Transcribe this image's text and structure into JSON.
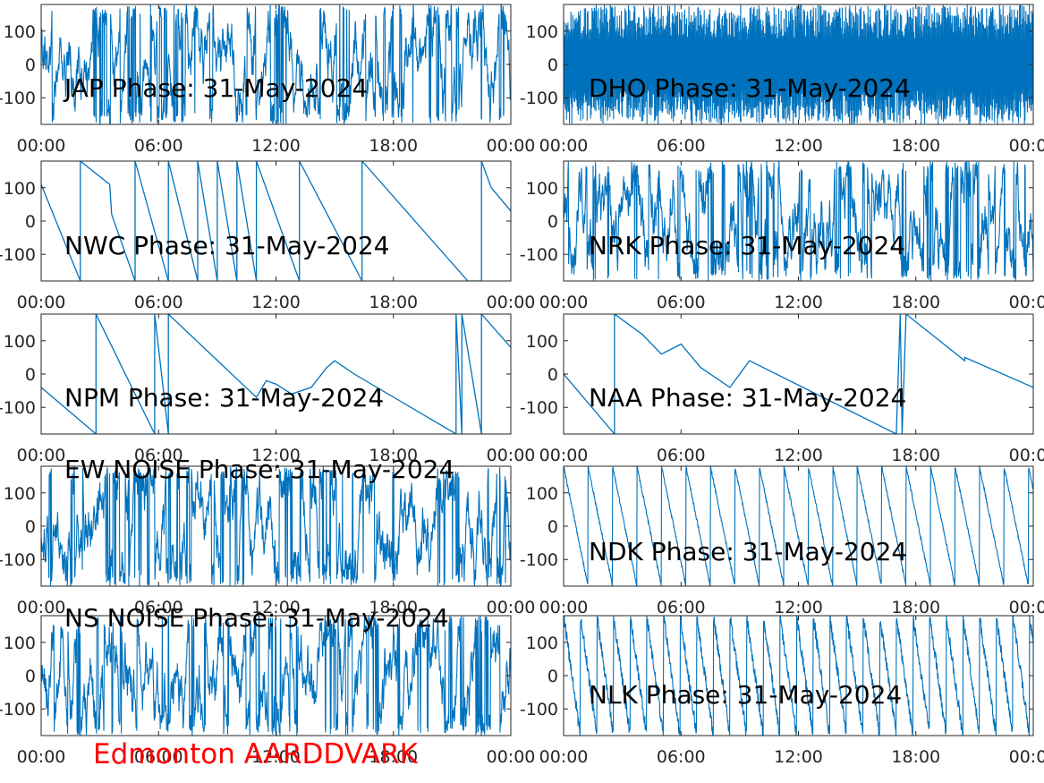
{
  "colors": {
    "trace": "#0072bd",
    "axis": "#262626",
    "footer": "#ff0000",
    "background": "#ffffff"
  },
  "footer": {
    "label": "Edmonton AARDDVARK"
  },
  "chart_data": [
    {
      "type": "line",
      "title": "JAP Phase: 31-May-2024",
      "trace": "noise",
      "seed": 11,
      "x_tick_labels": [
        "00:00",
        "06:00",
        "12:00",
        "18:00",
        "00:00"
      ],
      "y_tick_labels": [
        "100",
        "0",
        "-100"
      ],
      "xlim": [
        0,
        24
      ],
      "ylim": [
        -180,
        180
      ],
      "series": [
        {
          "x": [],
          "y": []
        }
      ]
    },
    {
      "type": "line",
      "title": "DHO Phase: 31-May-2024",
      "trace": "dense",
      "seed": 12,
      "x_tick_labels": [
        "00:00",
        "06:00",
        "12:00",
        "18:00",
        "00:00"
      ],
      "y_tick_labels": [
        "100",
        "0",
        "-100"
      ],
      "xlim": [
        0,
        24
      ],
      "ylim": [
        -180,
        180
      ],
      "series": [
        {
          "x": [],
          "y": []
        }
      ]
    },
    {
      "type": "line",
      "title": "NWC Phase: 31-May-2024",
      "trace": "sawtooth",
      "seed": 13,
      "x_tick_labels": [
        "00:00",
        "06:00",
        "12:00",
        "18:00",
        "00:00"
      ],
      "y_tick_labels": [
        "100",
        "0",
        "-100"
      ],
      "xlim": [
        0,
        24
      ],
      "ylim": [
        -180,
        180
      ],
      "series": [
        {
          "x": [
            0,
            2,
            2,
            3.5,
            3.6,
            4.8,
            4.8,
            6.5,
            6.5,
            8,
            8,
            9,
            9,
            10,
            10,
            11,
            11,
            13.2,
            13.2,
            16.4,
            16.4,
            21.2,
            21.8,
            22.5,
            22.5,
            23,
            24
          ],
          "y": [
            110,
            -180,
            180,
            110,
            20,
            -180,
            180,
            -180,
            180,
            -180,
            180,
            -180,
            180,
            -180,
            180,
            -180,
            180,
            -180,
            180,
            -180,
            180,
            -140,
            -180,
            -180,
            180,
            100,
            30
          ]
        }
      ]
    },
    {
      "type": "line",
      "title": "NRK Phase: 31-May-2024",
      "trace": "noise",
      "seed": 14,
      "x_tick_labels": [
        "00:00",
        "06:00",
        "12:00",
        "18:00",
        "00:00"
      ],
      "y_tick_labels": [
        "100",
        "0",
        "-100"
      ],
      "xlim": [
        0,
        24
      ],
      "ylim": [
        -180,
        180
      ],
      "series": [
        {
          "x": [],
          "y": []
        }
      ]
    },
    {
      "type": "line",
      "title": "NPM Phase: 31-May-2024",
      "trace": "line",
      "seed": 15,
      "x_tick_labels": [
        "00:00",
        "06:00",
        "12:00",
        "18:00",
        "00:00"
      ],
      "y_tick_labels": [
        "100",
        "0",
        "-100"
      ],
      "xlim": [
        0,
        24
      ],
      "ylim": [
        -180,
        180
      ],
      "series": [
        {
          "x": [
            0,
            2.8,
            2.8,
            5.8,
            5.8,
            6.5,
            6.5,
            11,
            11.5,
            12,
            12.8,
            13.8,
            14.6,
            15,
            16,
            21.2,
            21.2,
            21.5,
            21.5,
            22.5,
            22.5,
            24
          ],
          "y": [
            -40,
            -180,
            180,
            -180,
            180,
            -180,
            180,
            -70,
            -20,
            -30,
            -60,
            -40,
            20,
            40,
            0,
            -180,
            180,
            -180,
            180,
            -180,
            180,
            80
          ]
        }
      ]
    },
    {
      "type": "line",
      "title": "NAA Phase: 31-May-2024",
      "trace": "line",
      "seed": 16,
      "x_tick_labels": [
        "00:00",
        "06:00",
        "12:00",
        "18:00",
        "00:00"
      ],
      "y_tick_labels": [
        "100",
        "0",
        "-100"
      ],
      "xlim": [
        0,
        24
      ],
      "ylim": [
        -180,
        180
      ],
      "series": [
        {
          "x": [
            0,
            2.6,
            2.6,
            4,
            5,
            6,
            7,
            8.5,
            9.5,
            17,
            17.2,
            17.3,
            17.5,
            20.5,
            20.5,
            24
          ],
          "y": [
            0,
            -180,
            180,
            120,
            60,
            90,
            20,
            -40,
            40,
            -180,
            180,
            -180,
            180,
            40,
            50,
            -40
          ]
        }
      ]
    },
    {
      "type": "line",
      "title": "EW NOISE Phase: 31-May-2024",
      "trace": "noise",
      "seed": 17,
      "x_tick_labels": [
        "00:00",
        "06:00",
        "12:00",
        "18:00",
        "00:00"
      ],
      "y_tick_labels": [
        "100",
        "0",
        "-100"
      ],
      "xlim": [
        0,
        24
      ],
      "ylim": [
        -180,
        180
      ],
      "series": [
        {
          "x": [],
          "y": []
        }
      ]
    },
    {
      "type": "line",
      "title": "NDK Phase: 31-May-2024",
      "trace": "ramp",
      "seed": 18,
      "x_tick_labels": [
        "00:00",
        "06:00",
        "12:00",
        "18:00",
        "00:00"
      ],
      "y_tick_labels": [
        "100",
        "0",
        "-100"
      ],
      "xlim": [
        0,
        24
      ],
      "ylim": [
        -180,
        180
      ],
      "series": [
        {
          "x": [],
          "y": []
        }
      ]
    },
    {
      "type": "line",
      "title": "NS NOISE Phase: 31-May-2024",
      "trace": "noise",
      "seed": 19,
      "x_tick_labels": [
        "00:00",
        "06:00",
        "12:00",
        "18:00",
        "00:00"
      ],
      "y_tick_labels": [
        "100",
        "0",
        "-100"
      ],
      "xlim": [
        0,
        24
      ],
      "ylim": [
        -180,
        180
      ],
      "series": [
        {
          "x": [],
          "y": []
        }
      ]
    },
    {
      "type": "line",
      "title": "NLK Phase: 31-May-2024",
      "trace": "ramp",
      "seed": 20,
      "x_tick_labels": [
        "00:00",
        "06:00",
        "12:00",
        "18:00",
        "00:00"
      ],
      "y_tick_labels": [
        "100",
        "0",
        "-100"
      ],
      "xlim": [
        0,
        24
      ],
      "ylim": [
        -180,
        180
      ],
      "series": [
        {
          "x": [],
          "y": []
        }
      ]
    }
  ]
}
